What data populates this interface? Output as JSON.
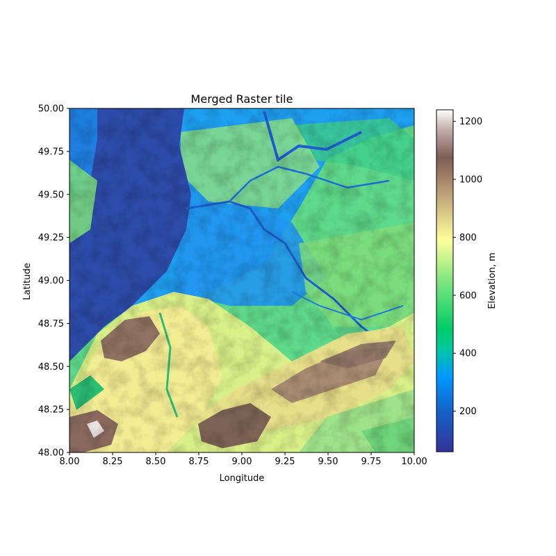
{
  "chart_data": {
    "type": "heatmap",
    "title": "Merged Raster tile",
    "xlabel": "Longitude",
    "ylabel": "Latitude",
    "xlim": [
      8.0,
      10.0
    ],
    "ylim": [
      48.0,
      50.0
    ],
    "x_ticks": [
      8.0,
      8.25,
      8.5,
      8.75,
      9.0,
      9.25,
      9.5,
      9.75,
      10.0
    ],
    "x_tick_labels": [
      "8.00",
      "8.25",
      "8.50",
      "8.75",
      "9.00",
      "9.25",
      "9.50",
      "9.75",
      "10.00"
    ],
    "y_ticks": [
      48.0,
      48.25,
      48.5,
      48.75,
      49.0,
      49.25,
      49.5,
      49.75,
      50.0
    ],
    "y_tick_labels": [
      "48.00",
      "48.25",
      "48.50",
      "48.75",
      "49.00",
      "49.25",
      "49.50",
      "49.75",
      "50.00"
    ],
    "colorbar": {
      "label": "Elevation, m",
      "colormap": "terrain",
      "range": [
        60,
        1240
      ],
      "ticks": [
        200,
        400,
        600,
        800,
        1000,
        1200
      ],
      "tick_labels": [
        "200",
        "400",
        "600",
        "800",
        "1000",
        "1200"
      ]
    },
    "grid": false,
    "colors": {
      "lowland": "#2b4aa6",
      "low": "#1f8cf5",
      "mid_low": "#1ccf6a",
      "mid": "#7fdc7a",
      "mid_high": "#f3ee8f",
      "high": "#8a6e5e",
      "peak": "#ffffff"
    }
  }
}
